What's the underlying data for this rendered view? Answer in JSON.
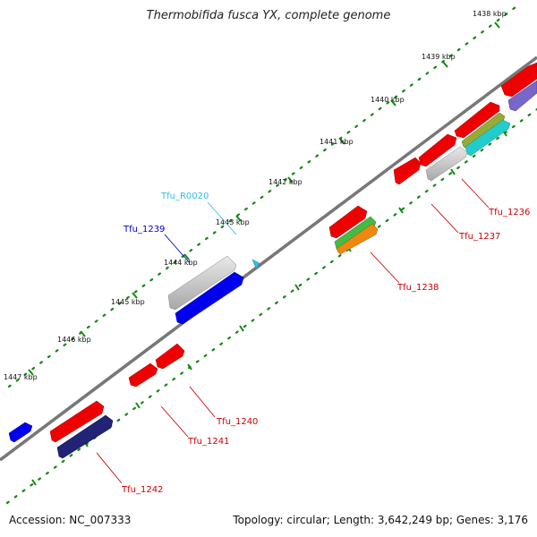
{
  "title": "Thermobifida fusca YX, complete genome",
  "footer": {
    "accession": "Accession: NC_007333",
    "summary": "Topology: circular; Length: 3,642,249 bp; Genes: 3,176"
  },
  "ticks": [
    {
      "label": "1438 kbp"
    },
    {
      "label": "1439 kbp"
    },
    {
      "label": "1440 kbp"
    },
    {
      "label": "1441 kbp"
    },
    {
      "label": "1442 kbp"
    },
    {
      "label": "1443 kbp"
    },
    {
      "label": "1444 kbp"
    },
    {
      "label": "1445 kbp"
    },
    {
      "label": "1446 kbp"
    },
    {
      "label": "1447 kbp"
    }
  ],
  "gene_labels": [
    {
      "name": "Tfu_R0020",
      "color": "#33bbee"
    },
    {
      "name": "Tfu_1239",
      "color": "#0000cc"
    },
    {
      "name": "Tfu_1236",
      "color": "#cc0000"
    },
    {
      "name": "Tfu_1237",
      "color": "#cc0000"
    },
    {
      "name": "Tfu_1238",
      "color": "#cc0000"
    },
    {
      "name": "Tfu_1240",
      "color": "#cc0000"
    },
    {
      "name": "Tfu_1241",
      "color": "#cc0000"
    },
    {
      "name": "Tfu_1242",
      "color": "#cc0000"
    }
  ],
  "colors": {
    "backbone": "#777777",
    "tick_dots": "#118811",
    "cds_forward": "#ee0000",
    "cds_reverse": "#ee0000",
    "gene_blue": "#0000ee",
    "gene_grey": "#bbbbbb",
    "gene_purple": "#7766cc",
    "gene_green": "#44bb44",
    "gene_orange": "#ee8811",
    "gene_cyan": "#22cccc",
    "trna": "#33bbee"
  }
}
